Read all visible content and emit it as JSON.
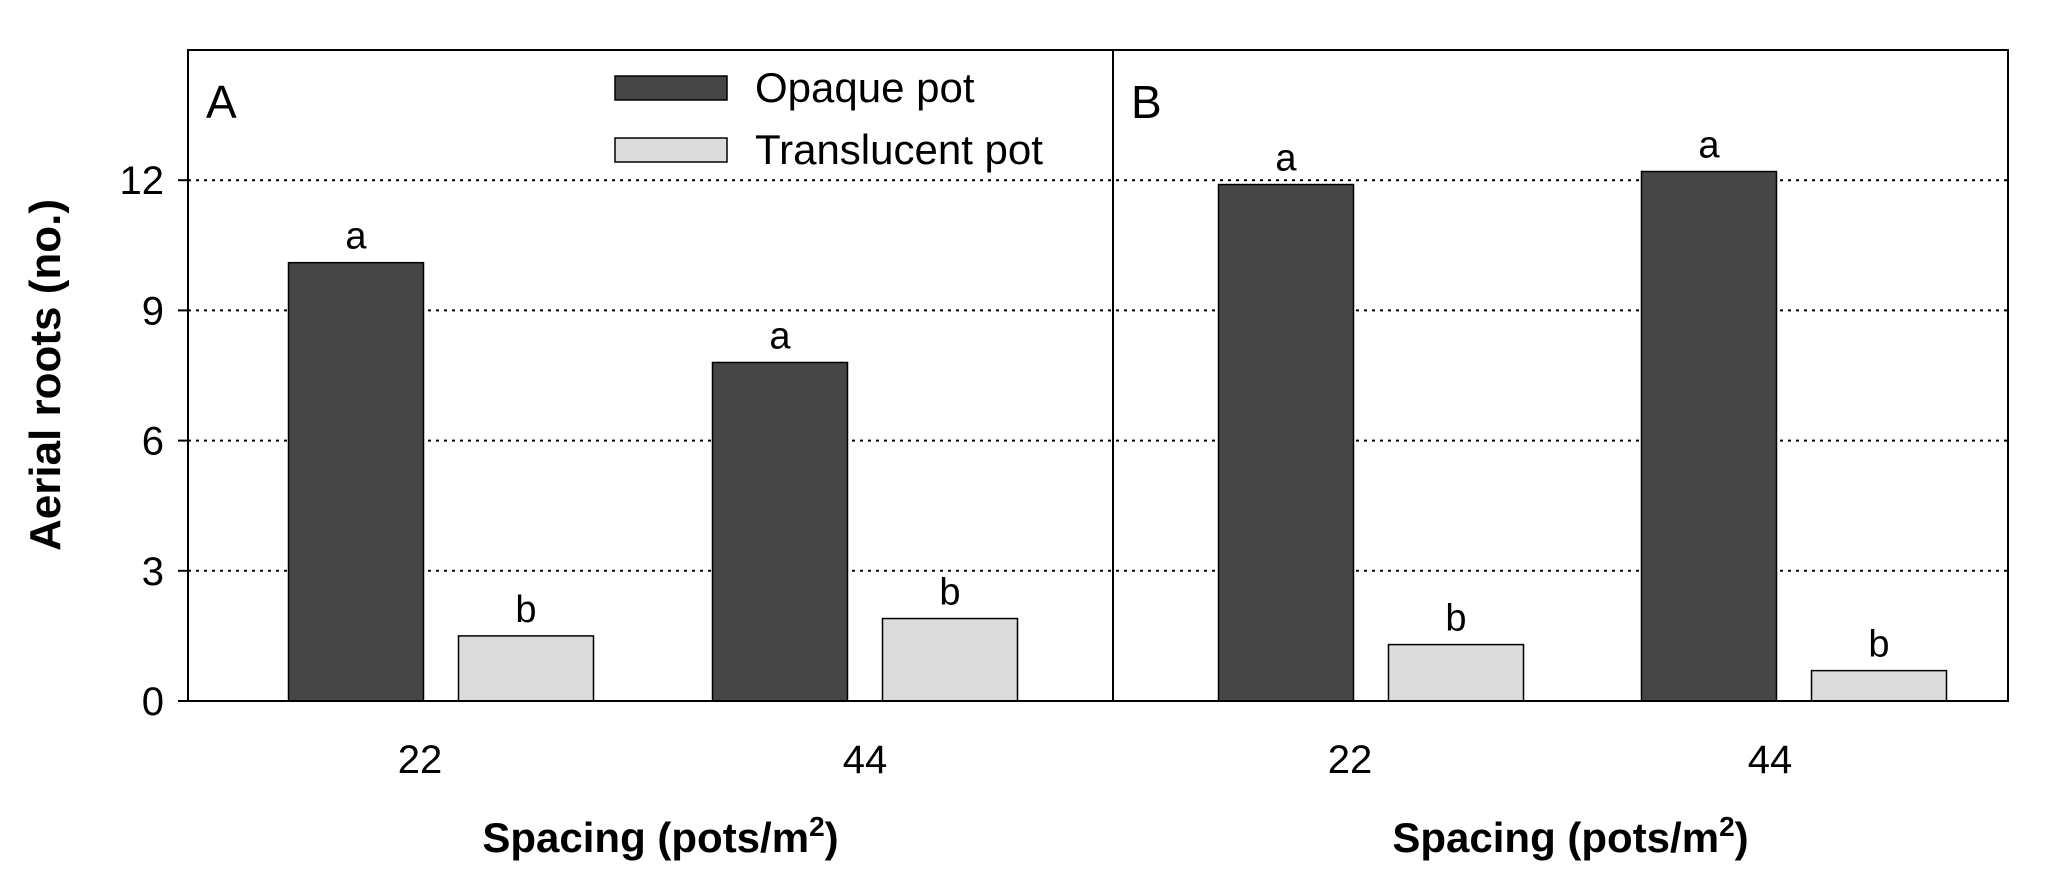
{
  "chart_data": {
    "type": "bar",
    "ylabel": "Aerial roots (no.)",
    "ylim": [
      0,
      15
    ],
    "yticks": [
      0,
      3,
      6,
      9,
      12
    ],
    "grid": "horizontal dotted",
    "legend_position": "top-center of panel A",
    "series_colors": {
      "opaque": "#464646",
      "translucent": "#dcdcdc"
    },
    "legend": [
      {
        "label": "Opaque pot",
        "color": "#464646"
      },
      {
        "label": "Translucent pot",
        "color": "#dcdcdc"
      }
    ],
    "panels": [
      {
        "label": "A",
        "xlabel_text": "Spacing (pots/m",
        "xlabel_sup": "2",
        "xlabel_close": ")",
        "categories": [
          "22",
          "44"
        ],
        "series": [
          {
            "name": "Opaque pot",
            "values": [
              10.1,
              7.8
            ],
            "letters": [
              "a",
              "a"
            ]
          },
          {
            "name": "Translucent pot",
            "values": [
              1.5,
              1.9
            ],
            "letters": [
              "b",
              "b"
            ]
          }
        ]
      },
      {
        "label": "B",
        "xlabel_text": "Spacing (pots/m",
        "xlabel_sup": "2",
        "xlabel_close": ")",
        "categories": [
          "22",
          "44"
        ],
        "series": [
          {
            "name": "Opaque pot",
            "values": [
              11.9,
              12.2
            ],
            "letters": [
              "a",
              "a"
            ]
          },
          {
            "name": "Translucent pot",
            "values": [
              1.3,
              0.7
            ],
            "letters": [
              "b",
              "b"
            ]
          }
        ]
      }
    ]
  }
}
